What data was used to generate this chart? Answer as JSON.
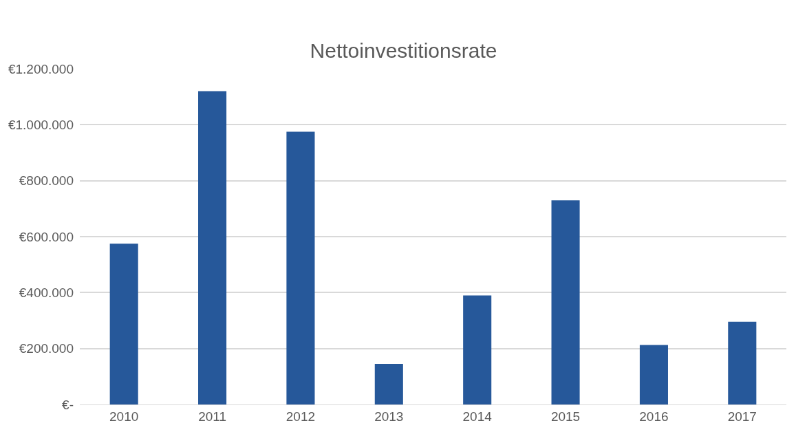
{
  "chart_data": {
    "type": "bar",
    "title": "Nettoinvestitionsrate",
    "categories": [
      "2010",
      "2011",
      "2012",
      "2013",
      "2014",
      "2015",
      "2016",
      "2017"
    ],
    "values": [
      575000,
      1120000,
      975000,
      145000,
      390000,
      730000,
      213000,
      296000
    ],
    "color": "#26589a",
    "ylim": [
      0,
      1200000
    ],
    "yticks": [
      {
        "value": 0,
        "label": "€-"
      },
      {
        "value": 200000,
        "label": "€200.000"
      },
      {
        "value": 400000,
        "label": "€400.000"
      },
      {
        "value": 600000,
        "label": "€600.000"
      },
      {
        "value": 800000,
        "label": "€800.000"
      },
      {
        "value": 1000000,
        "label": "€1.000.000"
      },
      {
        "value": 1200000,
        "label": "€1.200.000"
      }
    ],
    "grid": "y"
  }
}
